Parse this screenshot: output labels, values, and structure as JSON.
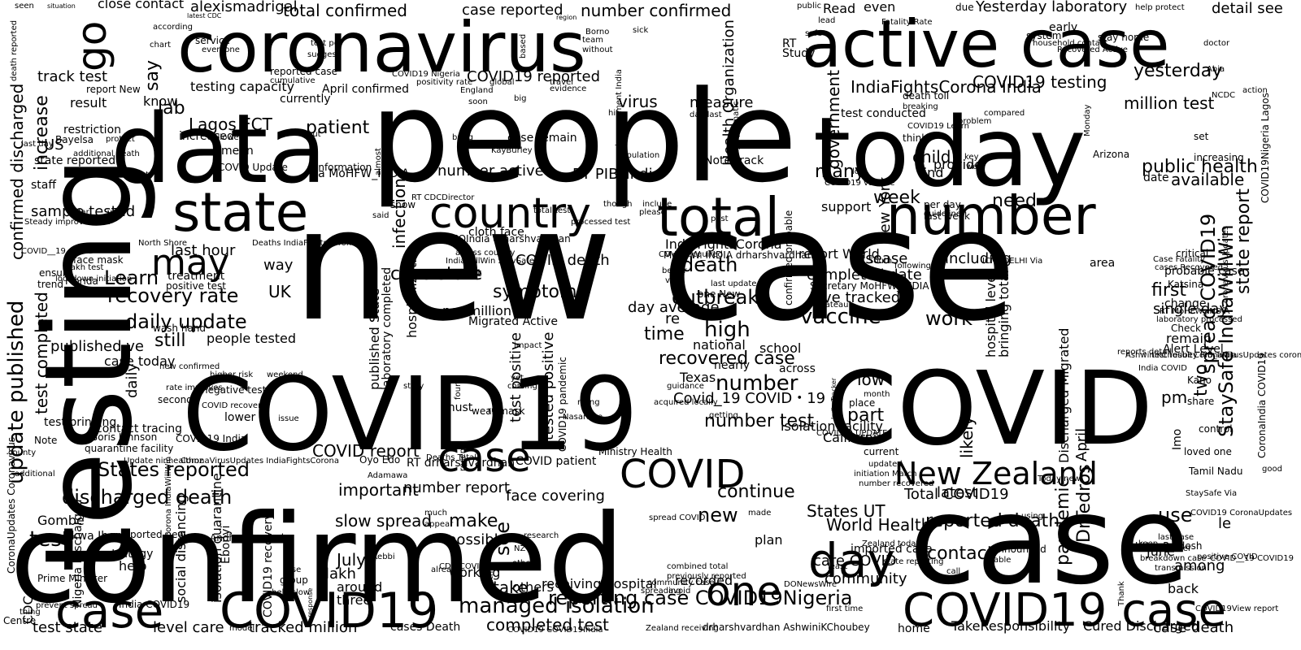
{
  "wordcloud": {
    "colors": {
      "background": "#ffffff",
      "text": "#000000"
    },
    "words": [
      "new case",
      "people",
      "confirmed",
      "case",
      "COVID19",
      "COVID",
      "testing",
      "data",
      "today",
      "coronavirus",
      "active case",
      "state",
      "total",
      "number",
      "country",
      "COVID19",
      "case",
      "COVID19 case",
      "case",
      "COVID",
      "New Zealand",
      "day",
      "one",
      "may",
      "go",
      "managed isolation",
      "discharged death",
      "daily update",
      "update published",
      "recovery rate",
      "Learn",
      "week",
      "need",
      "yesterday",
      "IndiaFightsCorona India",
      "COVID19 testing",
      "million test",
      "patient",
      "Lagos FCT",
      "lab",
      "say",
      "increase",
      "confirmed discharged",
      "total confirmed",
      "number confirmed",
      "alexismadrigal",
      "case reported",
      "Yesterday laboratory",
      "detail see",
      "stay home",
      "symptom",
      "outbreak",
      "death",
      "high",
      "time",
      "recovered case",
      "vaccine",
      "work",
      "number",
      "Covid_19 COVID・19",
      "number test",
      "reporting case COVID19Nigeria",
      "completed test",
      "tracked million",
      "test state",
      "level care",
      "test",
      "States reported",
      "COVID report",
      "continue",
      "new",
      "States UT",
      "World Health",
      "Total COVID19",
      "reported death",
      "contact",
      "latest",
      "pandemic",
      "DrTedros",
      "StaySafe IndiaWillWin",
      "spread COVID19",
      "state report",
      "public health",
      "available",
      "date",
      "first",
      "single day",
      "two",
      "pm",
      "April",
      "Discharged Migrated",
      "likely",
      "low",
      "part",
      "imported case",
      "among",
      "use",
      "June",
      "le",
      "back",
      "case death",
      "Cured Discharged",
      "TakeResponsibility",
      "community",
      "care COVID",
      "recorded",
      "plan",
      "announced",
      "slow spread",
      "make",
      "possible",
      "working",
      "July",
      "lakh",
      "around",
      "three",
      "others",
      "see",
      "take",
      "receiving hospital",
      "important",
      "number report",
      "face covering",
      "tested positive",
      "test positive",
      "COVID patient",
      "RT drharshvardhan",
      "COVID death",
      "case state",
      "last hour",
      "UK",
      "sample tested",
      "staff",
      "state reported",
      "US",
      "result",
      "track test",
      "Via MoHFW_INDIA",
      "number active",
      "RT PIB_India",
      "Note track",
      "many",
      "government",
      "New York",
      "child",
      "find",
      "provide",
      "infection",
      "virus",
      "measure",
      "Health Organization",
      "test conducted",
      "COVID19 reported",
      "case remain",
      "currently",
      "increased",
      "mean",
      "know",
      "testing capacity",
      "April confirmed",
      "Read",
      "even",
      "due",
      "early",
      "system",
      "Study",
      "RT",
      "service",
      "everyone",
      "restriction",
      "Bayelsa",
      "report New",
      "treatment",
      "positive test",
      "wash hand",
      "people tested",
      "published ve",
      "still",
      "test completed",
      "case today",
      "daily",
      "contact tracing",
      "test bringing",
      "quarantine facility",
      "second",
      "negative test",
      "COVID recovery",
      "lower",
      "higher risk",
      "new confirmed",
      "rate improves",
      "Boris Johnson",
      "COVID19 India",
      "CoronaVirusUpdates IndiaFightsCorona",
      "Update ninhealthnz",
      "social distancing",
      "isolation quarantine",
      "strategy",
      "help",
      "Prime Minister",
      "CDC",
      "Gombe",
      "Akwa Ibom",
      "reported new",
      "Andhra Pradesh",
      "Ebonyi",
      "COVID19 recovery",
      "group",
      "rise",
      "help slow",
      "prevent spread",
      "India COVID19",
      "CoronaUpdates Coronavirus",
      "Nigeria Discharged",
      "IndiaFightsCorona IndiaWillWin",
      "school",
      "national",
      "nearly",
      "across",
      "re",
      "day average",
      "hospitalization",
      "per million",
      "Migrated Active",
      "August",
      "PMOIndia drharshvardhan",
      "IndiaWillWin StaySafe",
      "cloth face",
      "across country",
      "disease",
      "including",
      "bringing total",
      "hospital level",
      "completed date",
      "ve tracked",
      "report World",
      "probable case",
      "confirmed probable",
      "published State",
      "laboratory completed",
      "MoHFW_INDIA drharshvardhan",
      "IndiaFightsCorona",
      "way",
      "support",
      "last week",
      "per day",
      "COVID19 vaccine",
      "Secretary MoHFW_INDIA",
      "last update",
      "one New",
      "visit",
      "better",
      "COVID acquired",
      "Texas",
      "isolation facility",
      "California",
      "Ministry Health",
      "COVID19 pandemic",
      "wear mask",
      "Nasarawa",
      "rising",
      "Kebbi",
      "Oyo Edo",
      "Adamawa",
      "Deaths Total",
      "acquired locally",
      "guidance",
      "getting",
      "COVID19 UPDATE",
      "India Tracker",
      "Tamil Nadu",
      "loved one",
      "control",
      "Kano",
      "share",
      "Alert Level",
      "remain",
      "Check",
      "laboratory processed",
      "RT MoHFW_INDIA",
      "change",
      "Katsina",
      "Case Fatality",
      "cases Recovered",
      "critical",
      "CoronaVirusUpdates",
      "COVID19Nigeria Lagos",
      "CoronaIndia COVID19",
      "AshwiniKChoubey PIB_India",
      "reports detail",
      "test result",
      "India COVID",
      "current",
      "updated",
      "initiation March",
      "number recovered",
      "month",
      "place",
      "StaySafe Via",
      "Today new",
      "state reporting",
      "Zealand today",
      "able",
      "last case",
      "breakdown case",
      "transmission",
      "positive COVID",
      "together",
      "CoronaVirusUpdates coronavirus",
      "CDC COVID19View",
      "COVID19View report",
      "COVID__19 COVID19",
      "combined total",
      "previously reported",
      "research",
      "community case",
      "spreading",
      "avoid",
      "recent",
      "death toll",
      "breaking",
      "compared",
      "problem",
      "COVID19 Learn",
      "think",
      "key",
      "well",
      "lot",
      "improvement India",
      "asymptomatic",
      "population",
      "hit",
      "day last",
      "Arizona",
      "Monday",
      "set",
      "increasing",
      "action",
      "NCDC",
      "help protect",
      "Recovered Active",
      "household contact",
      "doctor",
      "Abia",
      "public",
      "Fatality Rate",
      "safe",
      "lead",
      "test per",
      "suggest",
      "reported case",
      "cumulative",
      "positivity rate",
      "COVID19 Nigeria",
      "England",
      "soon",
      "big",
      "global",
      "travel",
      "evidence",
      "Borno",
      "team",
      "sick",
      "without",
      "based",
      "according",
      "chart",
      "region",
      "latest CDC",
      "situation",
      "seen",
      "close contact",
      "death reported",
      "lockdown initiation",
      "Florida",
      "trend",
      "ensure",
      "face mask",
      "lakh test",
      "COVID__19 COVID",
      "Steady improvement",
      "far",
      "year",
      "highest",
      "additional death",
      "last day",
      "protect",
      "KayBurley",
      "bring",
      "information",
      "COVID Update",
      "almost",
      "followed",
      "put",
      "Deaths IndiaFightsCorona",
      "North Shore",
      "said",
      "show",
      "RT CDCDirector",
      "total test",
      "processed test",
      "though",
      "include",
      "please",
      "past",
      "guideline",
      "following",
      "South",
      "August",
      "Plateau",
      "ICMRDELHI Via",
      "area",
      "impact",
      "yet",
      "coming",
      "four",
      "must",
      "story",
      "rule",
      "issue",
      "weekend",
      "response",
      "model",
      "first time",
      "least",
      "made",
      "call",
      "Uttar Pradesh",
      "Imo",
      "good",
      "keep",
      "Thank",
      "home",
      "Centre",
      "thing",
      "additional",
      "county",
      "Note",
      "much",
      "appear",
      "already",
      "within",
      "NZ",
      "others",
      "spread COVID",
      "Zealand receiving",
      "drharshvardhan AshwiniKChoubey",
      "cases Death",
      "COVID19 COVID19India",
      "DONewsWire",
      "COVID19 CoronaUpdates",
      "using"
    ]
  }
}
